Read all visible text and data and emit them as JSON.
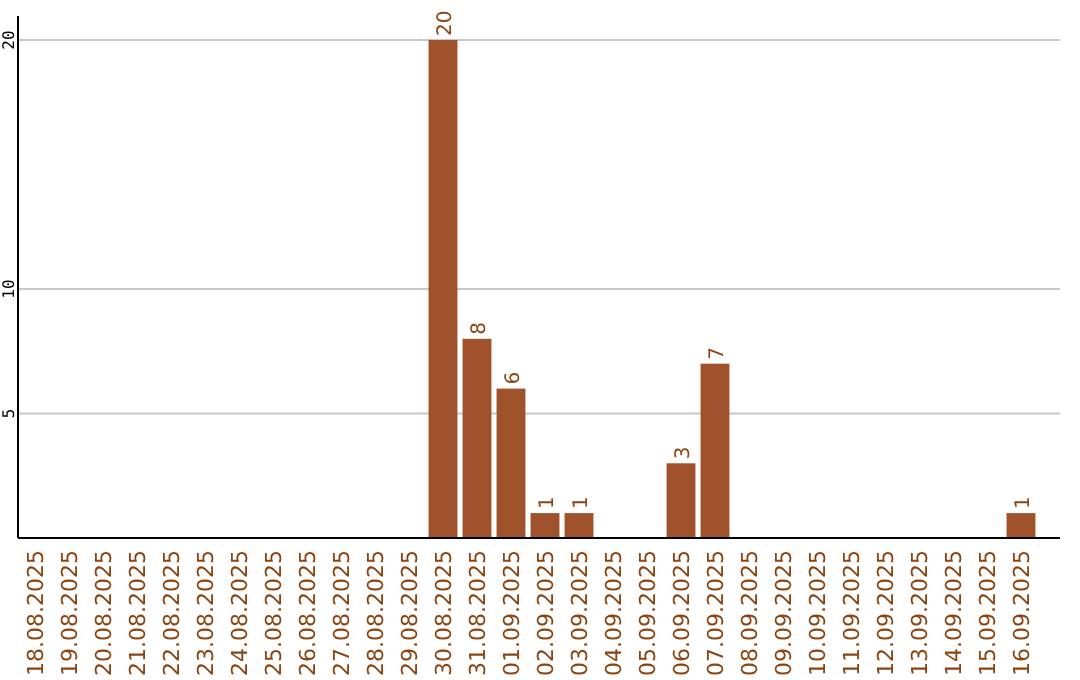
{
  "chart_data": {
    "type": "bar",
    "categories": [
      "18.08.2025",
      "19.08.2025",
      "20.08.2025",
      "21.08.2025",
      "22.08.2025",
      "23.08.2025",
      "24.08.2025",
      "25.08.2025",
      "26.08.2025",
      "27.08.2025",
      "28.08.2025",
      "29.08.2025",
      "30.08.2025",
      "31.08.2025",
      "01.09.2025",
      "02.09.2025",
      "03.09.2025",
      "04.09.2025",
      "05.09.2025",
      "06.09.2025",
      "07.09.2025",
      "08.09.2025",
      "09.09.2025",
      "10.09.2025",
      "11.09.2025",
      "12.09.2025",
      "13.09.2025",
      "14.09.2025",
      "15.09.2025",
      "16.09.2025"
    ],
    "values": [
      null,
      null,
      null,
      null,
      null,
      null,
      null,
      null,
      null,
      null,
      null,
      null,
      20,
      8,
      6,
      1,
      1,
      null,
      null,
      3,
      7,
      null,
      null,
      null,
      null,
      null,
      null,
      null,
      null,
      1
    ],
    "color": "#a0522d",
    "ylim": [
      0,
      20
    ],
    "yticks": [
      5,
      10,
      20
    ],
    "grid": "y",
    "data_labels": true
  }
}
